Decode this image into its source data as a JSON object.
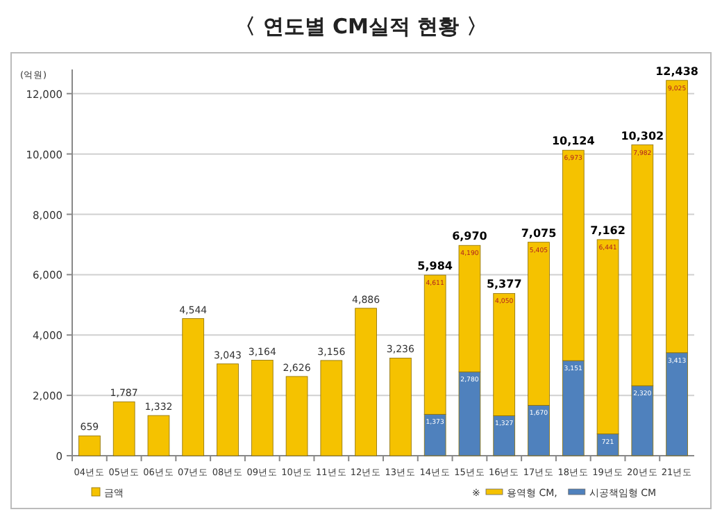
{
  "chart_data": {
    "type": "bar",
    "title": "〈 연도별 CM실적 현황 〉",
    "ylabel": "(억원)",
    "categories": [
      "04년도",
      "05년도",
      "06년도",
      "07년도",
      "08년도",
      "09년도",
      "10년도",
      "11년도",
      "12년도",
      "13년도",
      "14년도",
      "15년도",
      "16년도",
      "17년도",
      "18년도",
      "19년도",
      "20년도",
      "21년도"
    ],
    "stacked": true,
    "series": [
      {
        "name": "금액",
        "color": "#f5c200",
        "values": [
          659,
          1787,
          1332,
          4544,
          3043,
          3164,
          2626,
          3156,
          4886,
          3236,
          null,
          null,
          null,
          null,
          null,
          null,
          null,
          null
        ]
      },
      {
        "name": "시공책임형 CM",
        "color": "#4f81bd",
        "values": [
          null,
          null,
          null,
          null,
          null,
          null,
          null,
          null,
          null,
          null,
          1373,
          2780,
          1327,
          1670,
          3151,
          721,
          2320,
          3413
        ],
        "value_labels": [
          null,
          null,
          null,
          null,
          null,
          null,
          null,
          null,
          null,
          null,
          "1,373",
          "2,780",
          "1,327",
          "1,670",
          "3,151",
          "721",
          "2,320",
          "3,413"
        ]
      },
      {
        "name": "용역형 CM,",
        "color": "#f5c200",
        "values": [
          null,
          null,
          null,
          null,
          null,
          null,
          null,
          null,
          null,
          null,
          4611,
          4190,
          4050,
          5405,
          6973,
          6441,
          7982,
          9025
        ],
        "value_labels": [
          null,
          null,
          null,
          null,
          null,
          null,
          null,
          null,
          null,
          null,
          "4,611",
          "4,190",
          "4,050",
          "5,405",
          "6,973",
          "6,441",
          "7,982",
          "9,025"
        ]
      }
    ],
    "totals": [
      "659",
      "1,787",
      "1,332",
      "4,544",
      "3,043",
      "3,164",
      "2,626",
      "3,156",
      "4,886",
      "3,236",
      "5,984",
      "6,970",
      "5,377",
      "7,075",
      "10,124",
      "7,162",
      "10,302",
      "12,438"
    ],
    "ylim": [
      0,
      12800
    ],
    "yticks": [
      0,
      {
        "value": 2000,
        "label": "2,000"
      },
      {
        "value": 4000,
        "label": "4,000"
      },
      {
        "value": 6000,
        "label": "6,000"
      },
      {
        "value": 8000,
        "label": "8,000"
      },
      {
        "value": 10000,
        "label": "10,000"
      },
      {
        "value": 12000,
        "label": "12,000"
      }
    ],
    "grid": "y",
    "legend": "bottom",
    "annotations": [
      "※"
    ]
  }
}
